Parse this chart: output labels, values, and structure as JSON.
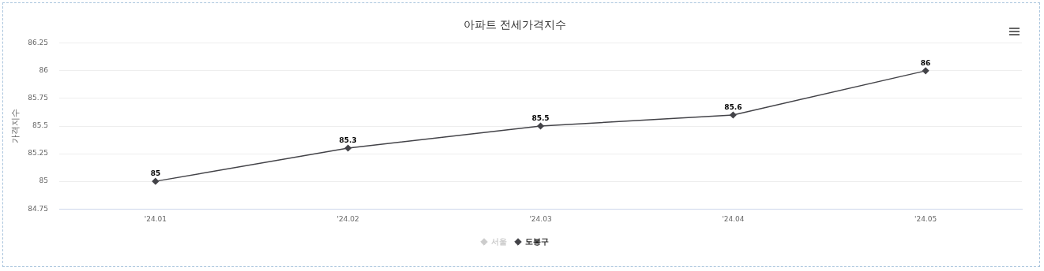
{
  "chart_data": {
    "type": "line",
    "title": "아파트 전세가격지수",
    "ylabel": "가격지수",
    "categories": [
      "'24.01",
      "'24.02",
      "'24.03",
      "'24.04",
      "'24.05"
    ],
    "series": [
      {
        "name": "서울",
        "color": "#cccccc",
        "values": [
          null,
          null,
          null,
          null,
          null
        ]
      },
      {
        "name": "도봉구",
        "color": "#434348",
        "values": [
          85,
          85.3,
          85.5,
          85.6,
          86
        ]
      }
    ],
    "ylim": [
      84.75,
      86.25
    ],
    "yticks": [
      84.75,
      85,
      85.25,
      85.5,
      85.75,
      86,
      86.25
    ],
    "grid": "y",
    "legend": "bottom",
    "marker": "diamond",
    "line_style": "solid",
    "data_labels": true
  }
}
